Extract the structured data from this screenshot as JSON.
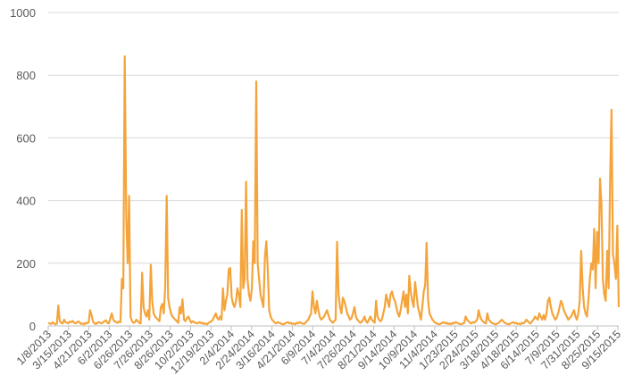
{
  "chart_data": {
    "type": "line",
    "title": "",
    "xlabel": "",
    "ylabel": "",
    "ylim": [
      0,
      1000
    ],
    "y_ticks": [
      "0",
      "200",
      "400",
      "600",
      "800",
      "1000"
    ],
    "x_tick_labels": [
      "1/8/2013",
      "3/15/2013",
      "4/21/2013",
      "6/2/2013",
      "6/26/2013",
      "7/26/2013",
      "8/26/2013",
      "10/2/2013",
      "12/19/2013",
      "2/4/2014",
      "2/24/2014",
      "3/16/2014",
      "4/21/2014",
      "6/9/2014",
      "7/4/2014",
      "7/26/2014",
      "8/21/2014",
      "9/14/2014",
      "10/9/2014",
      "11/4/2014",
      "1/23/2015",
      "2/24/2015",
      "3/18/2015",
      "4/18/2015",
      "6/14/2015",
      "7/9/2015",
      "7/31/2015",
      "8/25/2015",
      "9/15/2015"
    ],
    "grid": true,
    "legend": "none",
    "line_color": "#F4A43A",
    "series": [
      {
        "values": [
          10,
          8,
          6,
          12,
          8,
          5,
          7,
          65,
          15,
          10,
          8,
          20,
          12,
          10,
          8,
          14,
          12,
          16,
          10,
          8,
          12,
          14,
          10,
          6,
          8,
          5,
          10,
          8,
          12,
          50,
          35,
          15,
          8,
          6,
          10,
          12,
          10,
          8,
          12,
          15,
          18,
          10,
          8,
          25,
          40,
          20,
          15,
          12,
          10,
          14,
          12,
          150,
          120,
          860,
          350,
          200,
          415,
          30,
          15,
          10,
          12,
          20,
          15,
          10,
          8,
          170,
          60,
          40,
          30,
          50,
          20,
          195,
          80,
          40,
          30,
          25,
          20,
          15,
          60,
          70,
          40,
          120,
          415,
          90,
          60,
          40,
          30,
          25,
          20,
          15,
          10,
          60,
          40,
          85,
          20,
          15,
          25,
          30,
          20,
          10,
          15,
          12,
          10,
          8,
          10,
          12,
          8,
          10,
          6,
          8,
          5,
          10,
          12,
          15,
          20,
          30,
          40,
          25,
          20,
          30,
          20,
          120,
          50,
          80,
          100,
          180,
          185,
          90,
          70,
          60,
          80,
          120,
          100,
          60,
          370,
          120,
          150,
          460,
          150,
          100,
          80,
          120,
          270,
          200,
          780,
          200,
          150,
          100,
          80,
          60,
          220,
          270,
          180,
          50,
          30,
          20,
          15,
          10,
          8,
          12,
          10,
          8,
          6,
          5,
          8,
          10,
          12,
          8,
          10,
          6,
          8,
          5,
          10,
          8,
          12,
          10,
          8,
          6,
          10,
          15,
          20,
          30,
          40,
          110,
          60,
          40,
          80,
          50,
          30,
          20,
          25,
          30,
          40,
          50,
          35,
          20,
          15,
          10,
          15,
          20,
          268,
          100,
          60,
          40,
          90,
          80,
          60,
          40,
          30,
          20,
          25,
          40,
          60,
          30,
          20,
          15,
          10,
          12,
          20,
          30,
          15,
          10,
          20,
          30,
          20,
          15,
          10,
          80,
          30,
          20,
          15,
          20,
          40,
          60,
          100,
          80,
          60,
          100,
          110,
          90,
          80,
          60,
          40,
          30,
          50,
          80,
          110,
          60,
          100,
          40,
          160,
          110,
          80,
          60,
          140,
          100,
          60,
          40,
          20,
          60,
          110,
          130,
          265,
          80,
          40,
          30,
          20,
          15,
          10,
          8,
          6,
          5,
          8,
          10,
          12,
          8,
          10,
          6,
          8,
          5,
          10,
          8,
          12,
          10,
          8,
          6,
          5,
          8,
          10,
          30,
          20,
          15,
          10,
          8,
          12,
          10,
          15,
          20,
          50,
          30,
          20,
          15,
          10,
          8,
          40,
          20,
          15,
          10,
          8,
          6,
          5,
          8,
          10,
          15,
          20,
          15,
          10,
          8,
          6,
          5,
          8,
          10,
          12,
          8,
          10,
          6,
          8,
          5,
          10,
          8,
          12,
          20,
          15,
          10,
          8,
          15,
          20,
          30,
          25,
          20,
          40,
          30,
          20,
          35,
          20,
          40,
          80,
          90,
          60,
          40,
          30,
          20,
          25,
          40,
          60,
          80,
          70,
          50,
          40,
          30,
          20,
          25,
          30,
          40,
          50,
          30,
          20,
          40,
          80,
          240,
          120,
          60,
          40,
          30,
          80,
          150,
          200,
          180,
          310,
          120,
          300,
          200,
          470,
          390,
          150,
          100,
          80,
          240,
          120,
          460,
          690,
          230,
          200,
          150,
          320,
          60
        ]
      }
    ]
  }
}
